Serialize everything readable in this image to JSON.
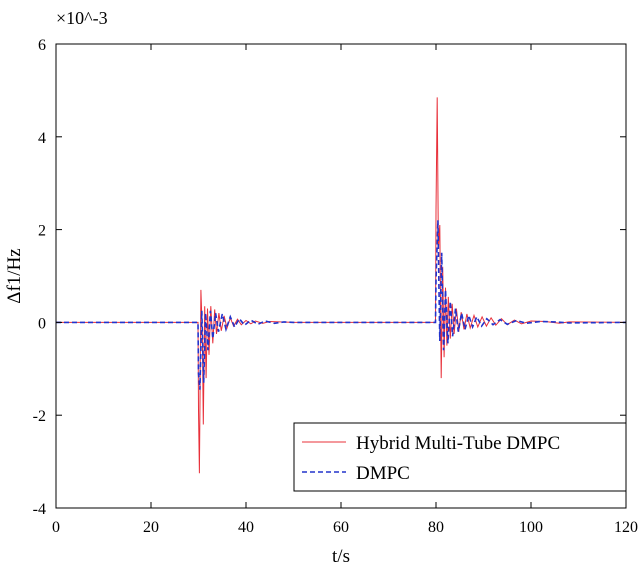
{
  "chart_data": {
    "type": "line",
    "title": "",
    "xlabel": "t/s",
    "ylabel": "Δf1/Hz",
    "y_multiplier": "×10^-3",
    "xlim": [
      0,
      120
    ],
    "ylim": [
      -4,
      6
    ],
    "x_ticks": [
      0,
      20,
      40,
      60,
      80,
      100,
      120
    ],
    "y_ticks": [
      -4,
      -2,
      0,
      2,
      4,
      6
    ],
    "x_tick_labels": [
      "0",
      "20",
      "40",
      "60",
      "80",
      "100",
      "120"
    ],
    "y_tick_labels": [
      "-4",
      "-2",
      "0",
      "2",
      "4",
      "6"
    ],
    "grid": false,
    "legend_position": "lower-right",
    "series": [
      {
        "name": "Hybrid Multi-Tube DMPC",
        "color": "#e8303a",
        "dash": "solid",
        "x": [
          0,
          29.9,
          30,
          30.2,
          30.5,
          30.8,
          31.0,
          31.3,
          31.6,
          31.9,
          32.2,
          32.6,
          33.0,
          33.4,
          33.8,
          34.3,
          34.8,
          35.4,
          36.0,
          36.7,
          37.4,
          38.2,
          39.0,
          40.0,
          41.0,
          42.0,
          43.5,
          45.0,
          47.0,
          50.0,
          79.9,
          80.0,
          80.25,
          80.5,
          80.8,
          81.1,
          81.4,
          81.7,
          82.0,
          82.3,
          82.6,
          83.0,
          83.4,
          83.8,
          84.3,
          84.8,
          85.3,
          85.9,
          86.5,
          87.2,
          88.0,
          88.8,
          89.7,
          90.6,
          91.6,
          92.6,
          93.8,
          95.0,
          96.5,
          98.0,
          100.0,
          103.0,
          106.0,
          108.0,
          120.0
        ],
        "y": [
          0,
          0,
          -1.9,
          -3.25,
          0.7,
          -0.2,
          -2.2,
          0.35,
          -1.2,
          0.3,
          -0.7,
          0.35,
          -0.45,
          0.28,
          -0.25,
          0.2,
          -0.18,
          0.14,
          -0.12,
          0.1,
          -0.08,
          0.07,
          -0.05,
          0.04,
          -0.03,
          0.03,
          -0.02,
          0.02,
          0.01,
          0,
          0,
          2.4,
          4.85,
          1.6,
          2.1,
          -1.2,
          1.2,
          -0.75,
          0.75,
          -0.5,
          0.55,
          -0.35,
          0.4,
          -0.25,
          0.3,
          -0.2,
          0.22,
          -0.15,
          0.18,
          -0.12,
          0.15,
          -0.1,
          0.12,
          -0.08,
          0.1,
          -0.06,
          0.08,
          -0.05,
          0.05,
          -0.03,
          0.03,
          0.02,
          -0.02,
          0.01,
          0
        ]
      },
      {
        "name": "DMPC",
        "color": "#2233cc",
        "dash": "dashed",
        "x": [
          0,
          29.9,
          30,
          30.3,
          30.7,
          31.1,
          31.5,
          32.0,
          32.5,
          33.0,
          33.6,
          34.2,
          35.0,
          35.8,
          36.7,
          37.6,
          38.6,
          39.7,
          41.0,
          42.5,
          44.0,
          46.0,
          48.0,
          50.0,
          79.9,
          80.0,
          80.4,
          80.8,
          81.2,
          81.6,
          82.0,
          82.5,
          83.0,
          83.5,
          84.1,
          84.7,
          85.4,
          86.1,
          86.9,
          87.7,
          88.6,
          89.6,
          90.7,
          92.0,
          93.5,
          95.0,
          97.0,
          99.0,
          102.0,
          105.0,
          108.0,
          120.0
        ],
        "y": [
          0,
          0,
          -1.1,
          -1.45,
          0.25,
          -1.3,
          0.2,
          -0.6,
          0.25,
          -0.35,
          0.2,
          -0.2,
          0.18,
          -0.15,
          0.12,
          -0.1,
          0.08,
          -0.06,
          0.05,
          -0.04,
          0.03,
          -0.02,
          0.01,
          0,
          0,
          0.9,
          2.2,
          -0.4,
          1.5,
          -0.6,
          0.7,
          -0.45,
          0.45,
          -0.3,
          0.3,
          -0.2,
          0.2,
          -0.15,
          0.15,
          -0.1,
          0.12,
          -0.08,
          0.08,
          -0.05,
          0.06,
          -0.04,
          0.04,
          -0.02,
          0.02,
          0.01,
          -0.01,
          0
        ]
      }
    ]
  }
}
